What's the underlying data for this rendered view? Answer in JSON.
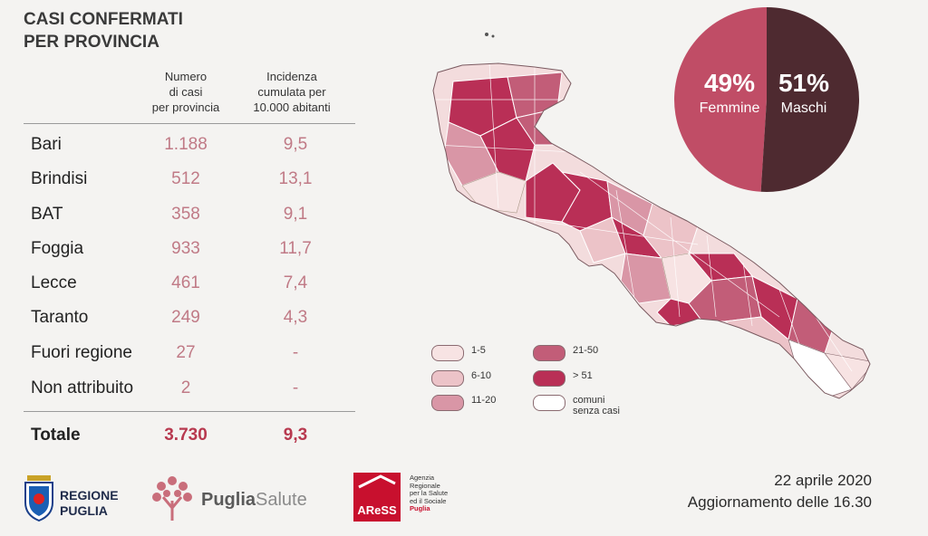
{
  "title_line1": "CASI CONFERMATI",
  "title_line2": "PER PROVINCIA",
  "columns": {
    "cases": [
      "Numero",
      "di casi",
      "per provincia"
    ],
    "incidence": [
      "Incidenza",
      "cumulata per",
      "10.000 abitanti"
    ]
  },
  "rows": [
    {
      "name": "Bari",
      "cases": "1.188",
      "incidence": "9,5"
    },
    {
      "name": "Brindisi",
      "cases": "512",
      "incidence": "13,1"
    },
    {
      "name": "BAT",
      "cases": "358",
      "incidence": "9,1"
    },
    {
      "name": "Foggia",
      "cases": "933",
      "incidence": "11,7"
    },
    {
      "name": "Lecce",
      "cases": "461",
      "incidence": "7,4"
    },
    {
      "name": "Taranto",
      "cases": "249",
      "incidence": "4,3"
    },
    {
      "name": "Fuori regione",
      "cases": "27",
      "incidence": "-"
    },
    {
      "name": "Non attribuito",
      "cases": "2",
      "incidence": "-"
    }
  ],
  "total": {
    "label": "Totale",
    "cases": "3.730",
    "incidence": "9,3"
  },
  "gender": {
    "female_pct": "49%",
    "female_label": "Femmine",
    "male_pct": "51%",
    "male_label": "Maschi",
    "female_share": 0.49,
    "female_color": "#c04d66",
    "male_color": "#4e2a30"
  },
  "legend": [
    {
      "label": "1-5",
      "color": "#f7e3e3"
    },
    {
      "label": "6-10",
      "color": "#ecc3c8"
    },
    {
      "label": "11-20",
      "color": "#d996a6"
    },
    {
      "label": "21-50",
      "color": "#c25d78"
    },
    {
      "label": "> 51",
      "color": "#b92f56"
    },
    {
      "label": "comuni",
      "label2": "senza casi",
      "color": "#ffffff"
    }
  ],
  "logos": {
    "regione_1": "REGIONE",
    "regione_2": "PUGLIA",
    "puglia": "Puglia",
    "salute": "Salute",
    "aress_mark": "AReSS",
    "aress_lines": [
      "Agenzia",
      "Regionale",
      "per la Salute",
      "ed il Sociale",
      "Puglia"
    ]
  },
  "date": "22 aprile 2020",
  "update": "Aggiornamento delle 16.30"
}
